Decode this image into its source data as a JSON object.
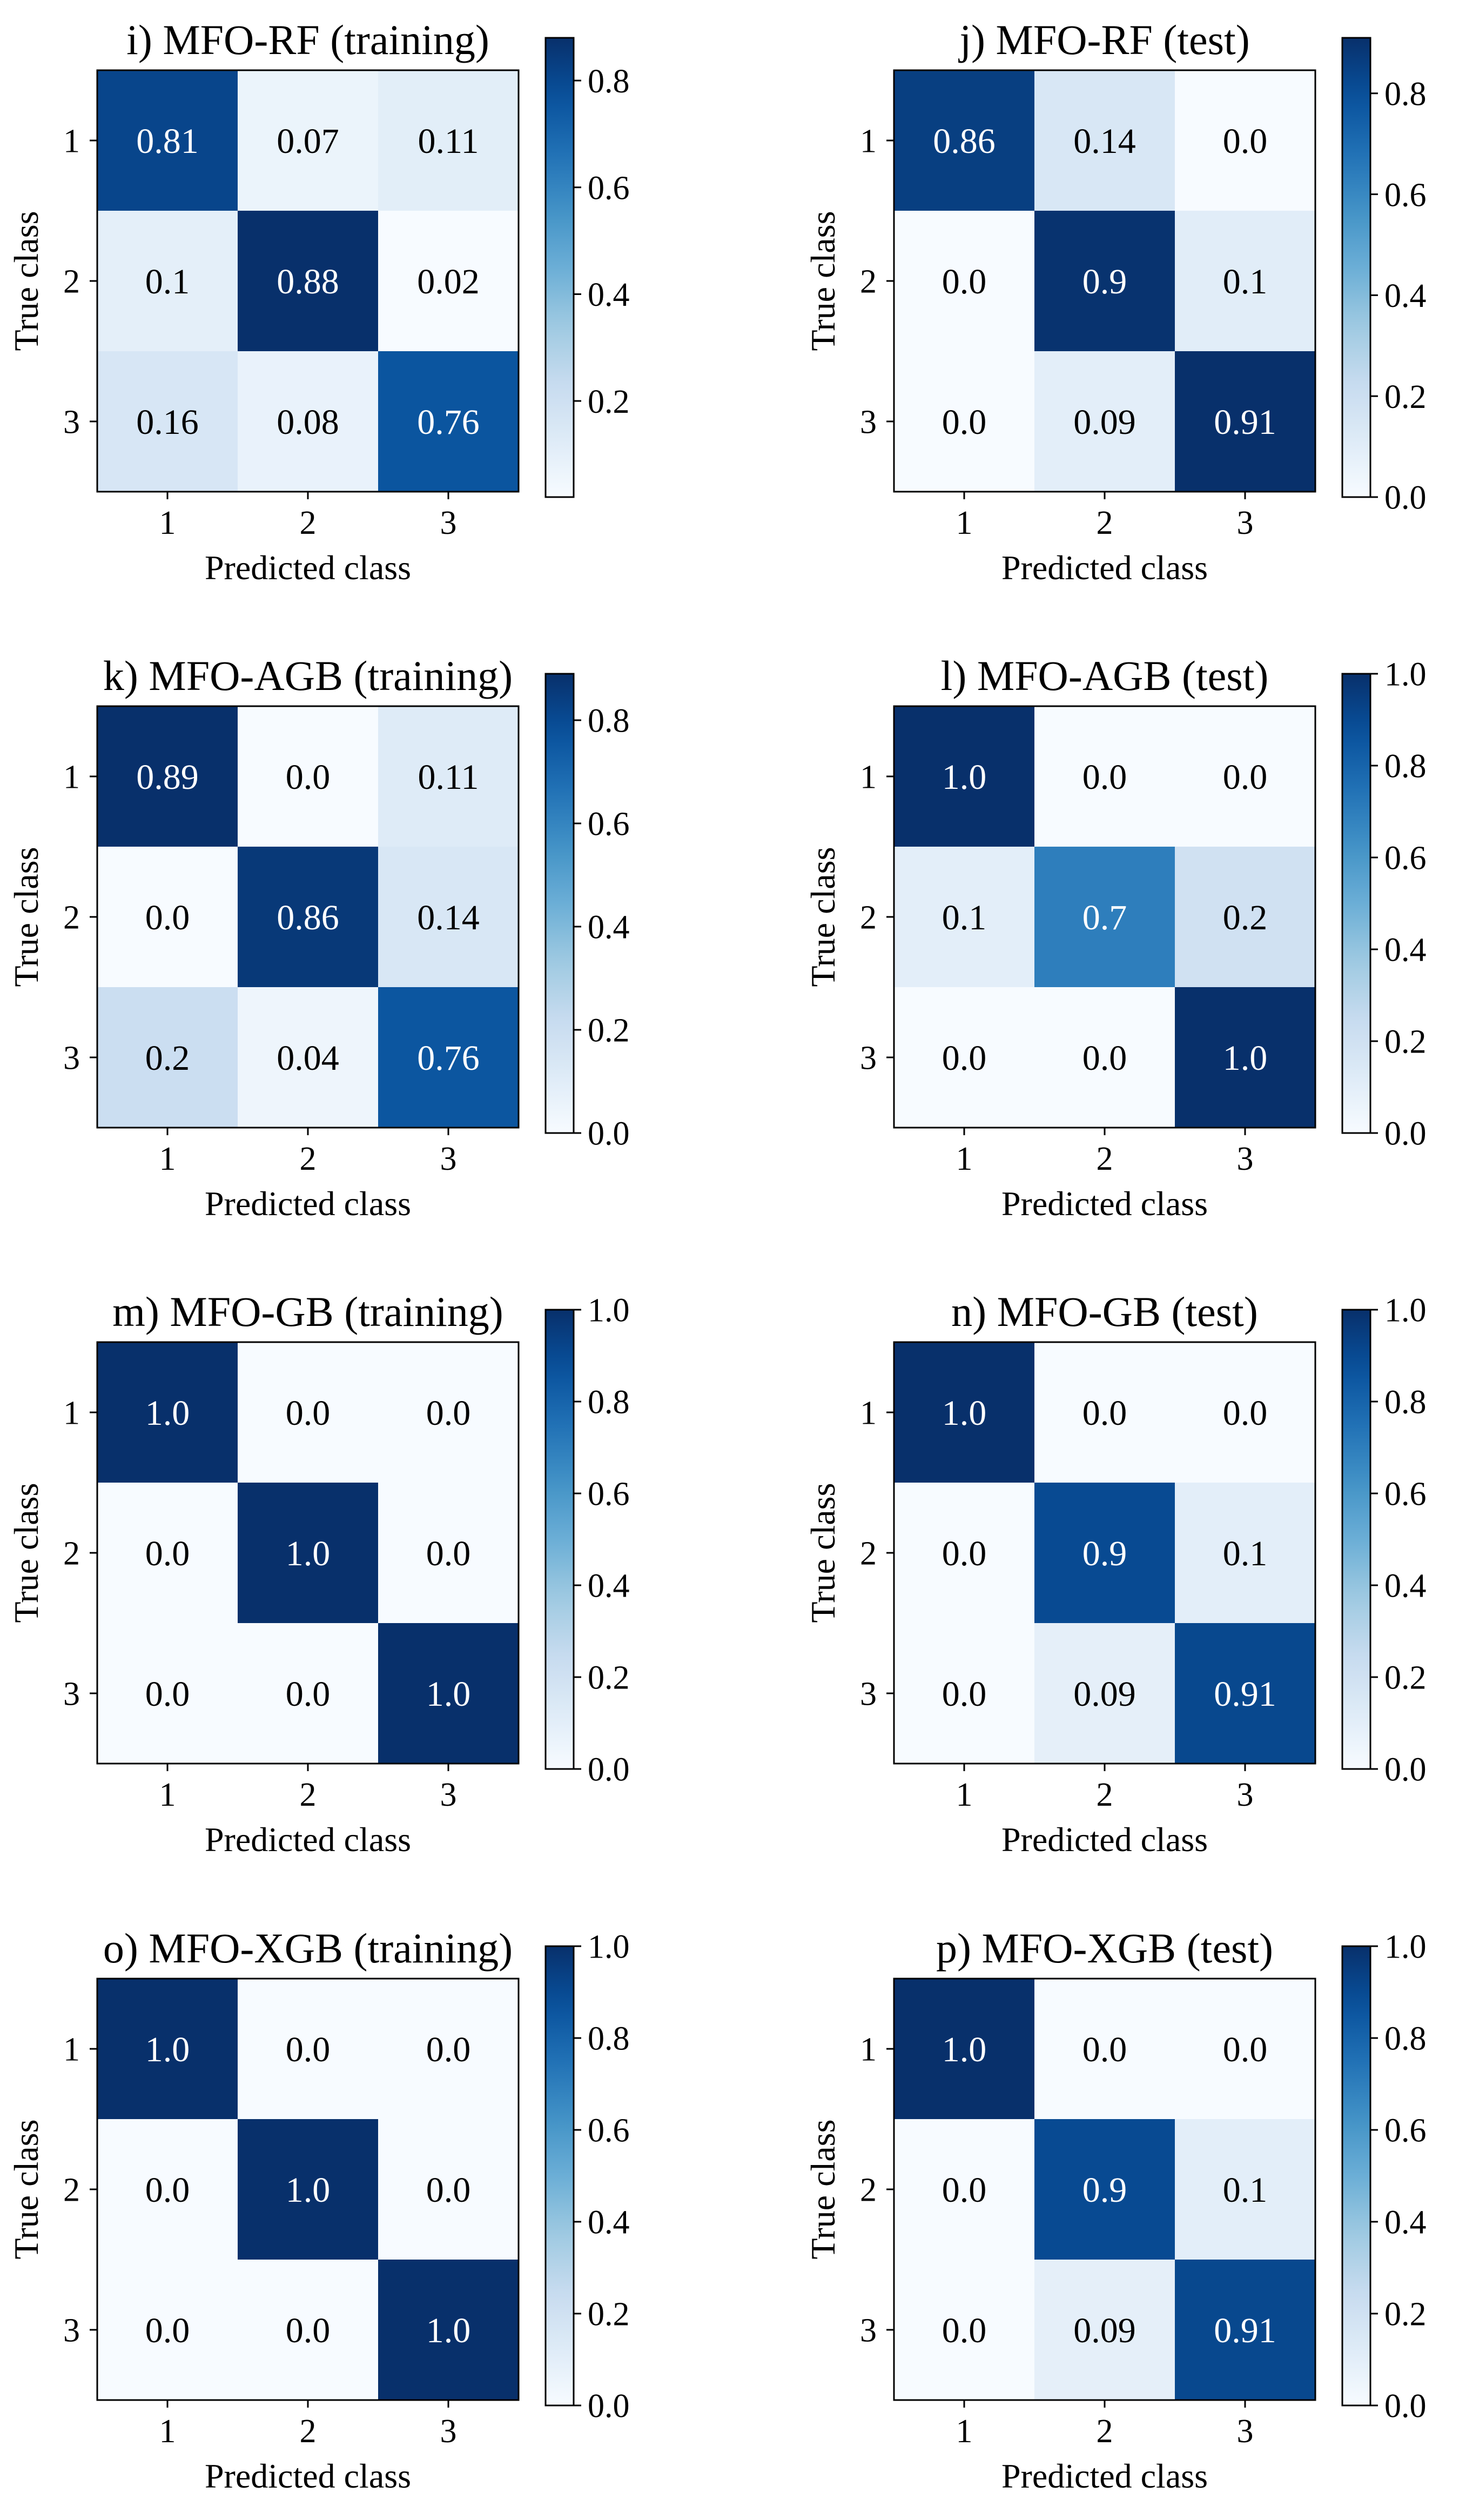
{
  "chart_data": [
    {
      "type": "heatmap",
      "title": "i) MFO-RF (training)",
      "xlabel": "Predicted class",
      "ylabel": "True class",
      "x_categories": [
        "1",
        "2",
        "3"
      ],
      "y_categories": [
        "1",
        "2",
        "3"
      ],
      "matrix": [
        [
          0.81,
          0.07,
          0.11
        ],
        [
          0.1,
          0.88,
          0.02
        ],
        [
          0.16,
          0.08,
          0.76
        ]
      ],
      "labels": [
        [
          "0.81",
          "0.07",
          "0.11"
        ],
        [
          "0.1",
          "0.88",
          "0.02"
        ],
        [
          "0.16",
          "0.08",
          "0.76"
        ]
      ],
      "colorbar": {
        "vmin": 0.02,
        "vmax": 0.88,
        "ticks": [
          0.2,
          0.4,
          0.6,
          0.8
        ],
        "tick_labels": [
          "0.2",
          "0.4",
          "0.6",
          "0.8"
        ]
      }
    },
    {
      "type": "heatmap",
      "title": "j) MFO-RF (test)",
      "xlabel": "Predicted class",
      "ylabel": "True class",
      "x_categories": [
        "1",
        "2",
        "3"
      ],
      "y_categories": [
        "1",
        "2",
        "3"
      ],
      "matrix": [
        [
          0.86,
          0.14,
          0.0
        ],
        [
          0.0,
          0.9,
          0.1
        ],
        [
          0.0,
          0.09,
          0.91
        ]
      ],
      "labels": [
        [
          "0.86",
          "0.14",
          "0.0"
        ],
        [
          "0.0",
          "0.9",
          "0.1"
        ],
        [
          "0.0",
          "0.09",
          "0.91"
        ]
      ],
      "colorbar": {
        "vmin": 0.0,
        "vmax": 0.91,
        "ticks": [
          0.0,
          0.2,
          0.4,
          0.6,
          0.8
        ],
        "tick_labels": [
          "0.0",
          "0.2",
          "0.4",
          "0.6",
          "0.8"
        ]
      }
    },
    {
      "type": "heatmap",
      "title": "k) MFO-AGB (training)",
      "xlabel": "Predicted class",
      "ylabel": "True class",
      "x_categories": [
        "1",
        "2",
        "3"
      ],
      "y_categories": [
        "1",
        "2",
        "3"
      ],
      "matrix": [
        [
          0.89,
          0.0,
          0.11
        ],
        [
          0.0,
          0.86,
          0.14
        ],
        [
          0.2,
          0.04,
          0.76
        ]
      ],
      "labels": [
        [
          "0.89",
          "0.0",
          "0.11"
        ],
        [
          "0.0",
          "0.86",
          "0.14"
        ],
        [
          "0.2",
          "0.04",
          "0.76"
        ]
      ],
      "colorbar": {
        "vmin": 0.0,
        "vmax": 0.89,
        "ticks": [
          0.0,
          0.2,
          0.4,
          0.6,
          0.8
        ],
        "tick_labels": [
          "0.0",
          "0.2",
          "0.4",
          "0.6",
          "0.8"
        ]
      }
    },
    {
      "type": "heatmap",
      "title": "l) MFO-AGB (test)",
      "xlabel": "Predicted class",
      "ylabel": "True class",
      "x_categories": [
        "1",
        "2",
        "3"
      ],
      "y_categories": [
        "1",
        "2",
        "3"
      ],
      "matrix": [
        [
          1.0,
          0.0,
          0.0
        ],
        [
          0.1,
          0.7,
          0.2
        ],
        [
          0.0,
          0.0,
          1.0
        ]
      ],
      "labels": [
        [
          "1.0",
          "0.0",
          "0.0"
        ],
        [
          "0.1",
          "0.7",
          "0.2"
        ],
        [
          "0.0",
          "0.0",
          "1.0"
        ]
      ],
      "colorbar": {
        "vmin": 0.0,
        "vmax": 1.0,
        "ticks": [
          0.0,
          0.2,
          0.4,
          0.6,
          0.8,
          1.0
        ],
        "tick_labels": [
          "0.0",
          "0.2",
          "0.4",
          "0.6",
          "0.8",
          "1.0"
        ]
      }
    },
    {
      "type": "heatmap",
      "title": "m) MFO-GB (training)",
      "xlabel": "Predicted class",
      "ylabel": "True class",
      "x_categories": [
        "1",
        "2",
        "3"
      ],
      "y_categories": [
        "1",
        "2",
        "3"
      ],
      "matrix": [
        [
          1.0,
          0.0,
          0.0
        ],
        [
          0.0,
          1.0,
          0.0
        ],
        [
          0.0,
          0.0,
          1.0
        ]
      ],
      "labels": [
        [
          "1.0",
          "0.0",
          "0.0"
        ],
        [
          "0.0",
          "1.0",
          "0.0"
        ],
        [
          "0.0",
          "0.0",
          "1.0"
        ]
      ],
      "colorbar": {
        "vmin": 0.0,
        "vmax": 1.0,
        "ticks": [
          0.0,
          0.2,
          0.4,
          0.6,
          0.8,
          1.0
        ],
        "tick_labels": [
          "0.0",
          "0.2",
          "0.4",
          "0.6",
          "0.8",
          "1.0"
        ]
      }
    },
    {
      "type": "heatmap",
      "title": "n) MFO-GB (test)",
      "xlabel": "Predicted class",
      "ylabel": "True class",
      "x_categories": [
        "1",
        "2",
        "3"
      ],
      "y_categories": [
        "1",
        "2",
        "3"
      ],
      "matrix": [
        [
          1.0,
          0.0,
          0.0
        ],
        [
          0.0,
          0.9,
          0.1
        ],
        [
          0.0,
          0.09,
          0.91
        ]
      ],
      "labels": [
        [
          "1.0",
          "0.0",
          "0.0"
        ],
        [
          "0.0",
          "0.9",
          "0.1"
        ],
        [
          "0.0",
          "0.09",
          "0.91"
        ]
      ],
      "colorbar": {
        "vmin": 0.0,
        "vmax": 1.0,
        "ticks": [
          0.0,
          0.2,
          0.4,
          0.6,
          0.8,
          1.0
        ],
        "tick_labels": [
          "0.0",
          "0.2",
          "0.4",
          "0.6",
          "0.8",
          "1.0"
        ]
      }
    },
    {
      "type": "heatmap",
      "title": "o) MFO-XGB (training)",
      "xlabel": "Predicted class",
      "ylabel": "True class",
      "x_categories": [
        "1",
        "2",
        "3"
      ],
      "y_categories": [
        "1",
        "2",
        "3"
      ],
      "matrix": [
        [
          1.0,
          0.0,
          0.0
        ],
        [
          0.0,
          1.0,
          0.0
        ],
        [
          0.0,
          0.0,
          1.0
        ]
      ],
      "labels": [
        [
          "1.0",
          "0.0",
          "0.0"
        ],
        [
          "0.0",
          "1.0",
          "0.0"
        ],
        [
          "0.0",
          "0.0",
          "1.0"
        ]
      ],
      "colorbar": {
        "vmin": 0.0,
        "vmax": 1.0,
        "ticks": [
          0.0,
          0.2,
          0.4,
          0.6,
          0.8,
          1.0
        ],
        "tick_labels": [
          "0.0",
          "0.2",
          "0.4",
          "0.6",
          "0.8",
          "1.0"
        ]
      }
    },
    {
      "type": "heatmap",
      "title": "p) MFO-XGB (test)",
      "xlabel": "Predicted class",
      "ylabel": "True class",
      "x_categories": [
        "1",
        "2",
        "3"
      ],
      "y_categories": [
        "1",
        "2",
        "3"
      ],
      "matrix": [
        [
          1.0,
          0.0,
          0.0
        ],
        [
          0.0,
          0.9,
          0.1
        ],
        [
          0.0,
          0.09,
          0.91
        ]
      ],
      "labels": [
        [
          "1.0",
          "0.0",
          "0.0"
        ],
        [
          "0.0",
          "0.9",
          "0.1"
        ],
        [
          "0.0",
          "0.09",
          "0.91"
        ]
      ],
      "colorbar": {
        "vmin": 0.0,
        "vmax": 1.0,
        "ticks": [
          0.0,
          0.2,
          0.4,
          0.6,
          0.8,
          1.0
        ],
        "tick_labels": [
          "0.0",
          "0.2",
          "0.4",
          "0.6",
          "0.8",
          "1.0"
        ]
      }
    }
  ]
}
